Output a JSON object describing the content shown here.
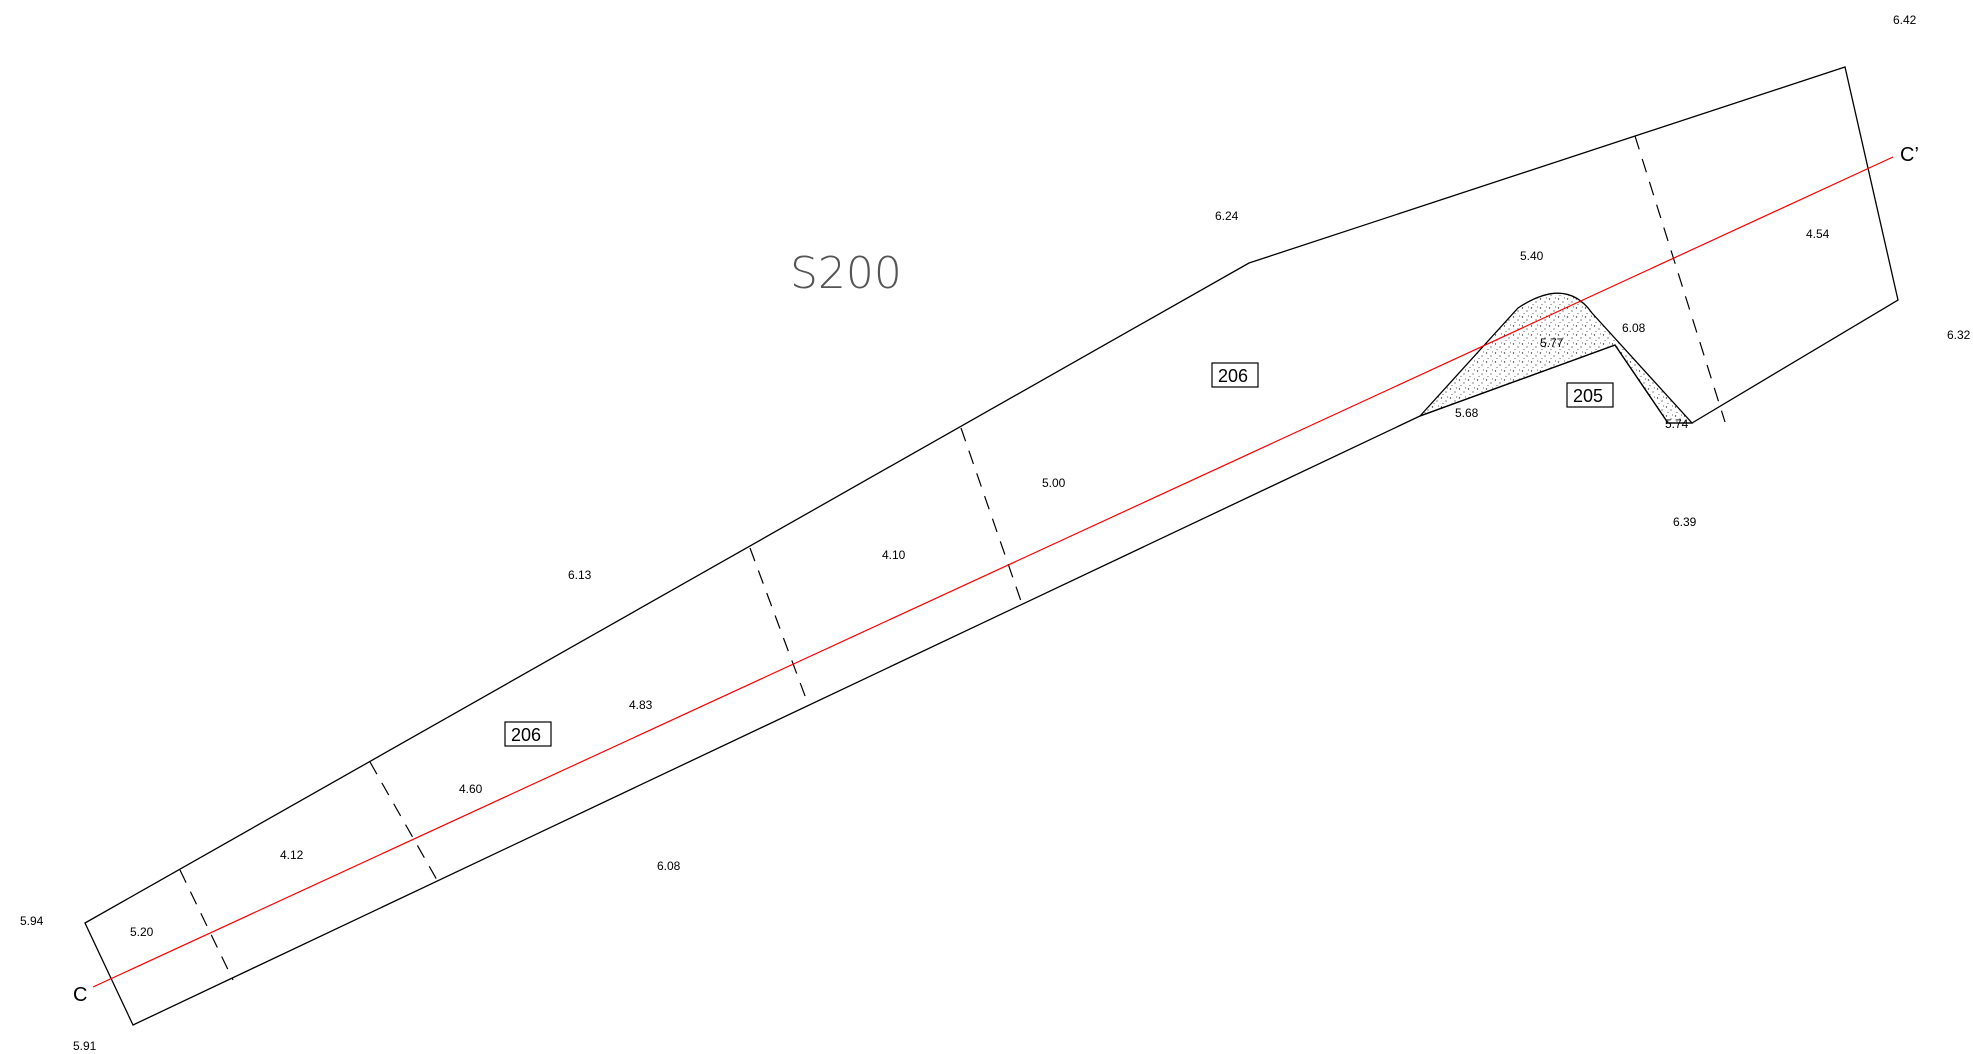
{
  "plan": {
    "zone_title": "S200",
    "section": {
      "start_label": "C",
      "end_label": "C’",
      "color": "#ff0000"
    },
    "feature_labels": {
      "upper": "206",
      "lower": "206",
      "stippled": "205"
    },
    "elevations_outside": {
      "top_right": "6.42",
      "top_mid": "6.24",
      "right": "6.32",
      "right_low": "6.39",
      "upper_mid": "6.13",
      "lower_mid": "6.08",
      "left": "5.94",
      "bottom_left": "5.91"
    },
    "elevations_inside": {
      "e1": "5.20",
      "e2": "4.12",
      "e3": "4.60",
      "e4": "4.83",
      "e5": "4.10",
      "e6": "5.00",
      "e7": "4.54"
    },
    "elevations_feature": {
      "top": "5.40",
      "center": "5.77",
      "right": "6.08",
      "left": "5.68",
      "bottom": "5.74"
    }
  }
}
